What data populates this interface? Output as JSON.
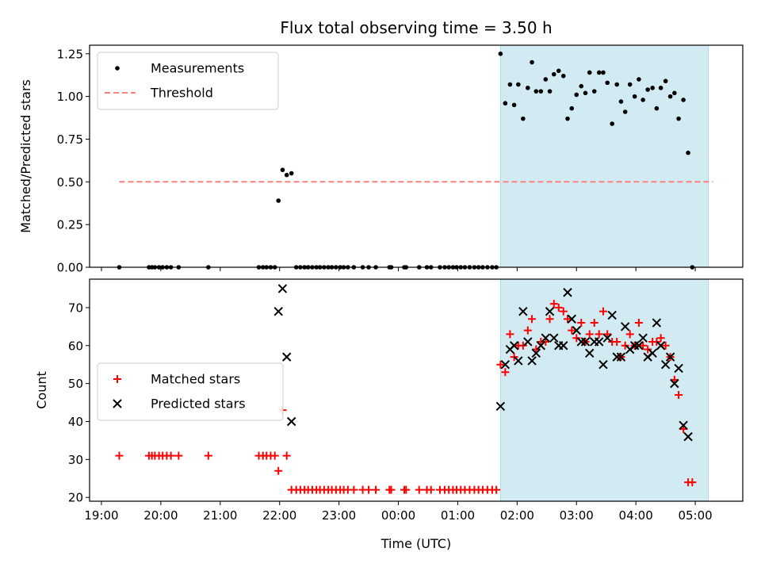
{
  "title": "Flux total observing time = 3.50 h",
  "xlabel": "Time (UTC)",
  "colors": {
    "highlight": "#add8e6",
    "threshold": "#ff7f7f",
    "measurement": "#000000",
    "matched": "#ff0000",
    "predicted": "#000000"
  },
  "chart_data": [
    {
      "type": "scatter",
      "ylabel": "Matched/Predicted stars",
      "xlim": [
        -0.2,
        10.8
      ],
      "ylim": [
        0,
        1.3
      ],
      "yticks": [
        "0.00",
        "0.25",
        "0.50",
        "0.75",
        "1.00",
        "1.25"
      ],
      "legend_position": "top-left",
      "threshold": {
        "name": "Threshold",
        "value": 0.5,
        "x_start": 0.3,
        "x_end": 10.3
      },
      "highlight_span": [
        6.72,
        10.22
      ],
      "series": [
        {
          "name": "Measurements",
          "points": [
            [
              0.3,
              0
            ],
            [
              0.8,
              0
            ],
            [
              0.85,
              0
            ],
            [
              0.9,
              0
            ],
            [
              0.97,
              0
            ],
            [
              1.03,
              0
            ],
            [
              1.1,
              0
            ],
            [
              1.17,
              0
            ],
            [
              1.3,
              0
            ],
            [
              1.8,
              0
            ],
            [
              2.65,
              0
            ],
            [
              2.72,
              0
            ],
            [
              2.78,
              0
            ],
            [
              2.85,
              0
            ],
            [
              2.92,
              0
            ],
            [
              2.98,
              0.39
            ],
            [
              3.05,
              0.57
            ],
            [
              3.12,
              0.54
            ],
            [
              3.2,
              0.55
            ],
            [
              3.28,
              0
            ],
            [
              3.35,
              0
            ],
            [
              3.42,
              0
            ],
            [
              3.48,
              0
            ],
            [
              3.55,
              0
            ],
            [
              3.62,
              0
            ],
            [
              3.68,
              0
            ],
            [
              3.75,
              0
            ],
            [
              3.82,
              0
            ],
            [
              3.88,
              0
            ],
            [
              3.95,
              0
            ],
            [
              4.02,
              0
            ],
            [
              4.08,
              0
            ],
            [
              4.15,
              0
            ],
            [
              4.25,
              0
            ],
            [
              4.4,
              0
            ],
            [
              4.5,
              0
            ],
            [
              4.62,
              0
            ],
            [
              4.85,
              0
            ],
            [
              4.88,
              0
            ],
            [
              5.1,
              0
            ],
            [
              5.13,
              0
            ],
            [
              5.35,
              0
            ],
            [
              5.48,
              0
            ],
            [
              5.55,
              0
            ],
            [
              5.7,
              0
            ],
            [
              5.78,
              0
            ],
            [
              5.85,
              0
            ],
            [
              5.92,
              0
            ],
            [
              5.98,
              0
            ],
            [
              6.05,
              0
            ],
            [
              6.12,
              0
            ],
            [
              6.2,
              0
            ],
            [
              6.28,
              0
            ],
            [
              6.35,
              0
            ],
            [
              6.42,
              0
            ],
            [
              6.5,
              0
            ],
            [
              6.58,
              0
            ],
            [
              6.65,
              0
            ],
            [
              6.72,
              1.25
            ],
            [
              6.8,
              0.96
            ],
            [
              6.88,
              1.07
            ],
            [
              6.95,
              0.95
            ],
            [
              7.02,
              1.07
            ],
            [
              7.1,
              0.87
            ],
            [
              7.18,
              1.05
            ],
            [
              7.25,
              1.2
            ],
            [
              7.32,
              1.03
            ],
            [
              7.4,
              1.03
            ],
            [
              7.48,
              1.1
            ],
            [
              7.55,
              1.03
            ],
            [
              7.62,
              1.13
            ],
            [
              7.7,
              1.15
            ],
            [
              7.78,
              1.12
            ],
            [
              7.85,
              0.87
            ],
            [
              7.92,
              0.93
            ],
            [
              8.0,
              1.01
            ],
            [
              8.08,
              1.06
            ],
            [
              8.15,
              1.02
            ],
            [
              8.22,
              1.14
            ],
            [
              8.3,
              1.03
            ],
            [
              8.38,
              1.14
            ],
            [
              8.45,
              1.14
            ],
            [
              8.52,
              1.08
            ],
            [
              8.6,
              0.84
            ],
            [
              8.68,
              1.07
            ],
            [
              8.75,
              0.97
            ],
            [
              8.82,
              0.91
            ],
            [
              8.9,
              1.07
            ],
            [
              8.98,
              1.0
            ],
            [
              9.05,
              1.1
            ],
            [
              9.12,
              0.98
            ],
            [
              9.2,
              1.04
            ],
            [
              9.28,
              1.05
            ],
            [
              9.35,
              0.93
            ],
            [
              9.42,
              1.05
            ],
            [
              9.5,
              1.09
            ],
            [
              9.58,
              1.0
            ],
            [
              9.65,
              1.02
            ],
            [
              9.72,
              0.87
            ],
            [
              9.8,
              0.98
            ],
            [
              9.88,
              0.67
            ],
            [
              9.95,
              0
            ]
          ]
        }
      ]
    },
    {
      "type": "scatter",
      "ylabel": "Count",
      "xlabel": "Time (UTC)",
      "xlim": [
        -0.2,
        10.8
      ],
      "ylim": [
        19,
        77.5
      ],
      "yticks": [
        "20",
        "30",
        "40",
        "50",
        "60",
        "70"
      ],
      "xticks": [
        "19:00",
        "20:00",
        "21:00",
        "22:00",
        "23:00",
        "00:00",
        "01:00",
        "02:00",
        "03:00",
        "04:00",
        "05:00"
      ],
      "legend_position": "center-left",
      "highlight_span": [
        6.72,
        10.22
      ],
      "series": [
        {
          "name": "Matched stars",
          "marker": "plus",
          "points": [
            [
              0.3,
              31
            ],
            [
              0.8,
              31
            ],
            [
              0.85,
              31
            ],
            [
              0.9,
              31
            ],
            [
              0.97,
              31
            ],
            [
              1.03,
              31
            ],
            [
              1.1,
              31
            ],
            [
              1.17,
              31
            ],
            [
              1.3,
              31
            ],
            [
              1.8,
              31
            ],
            [
              2.65,
              31
            ],
            [
              2.72,
              31
            ],
            [
              2.78,
              31
            ],
            [
              2.85,
              31
            ],
            [
              2.92,
              31
            ],
            [
              2.98,
              27
            ],
            [
              3.05,
              43
            ],
            [
              3.12,
              31
            ],
            [
              3.2,
              22
            ],
            [
              3.28,
              22
            ],
            [
              3.35,
              22
            ],
            [
              3.42,
              22
            ],
            [
              3.48,
              22
            ],
            [
              3.55,
              22
            ],
            [
              3.62,
              22
            ],
            [
              3.68,
              22
            ],
            [
              3.75,
              22
            ],
            [
              3.82,
              22
            ],
            [
              3.88,
              22
            ],
            [
              3.95,
              22
            ],
            [
              4.02,
              22
            ],
            [
              4.08,
              22
            ],
            [
              4.15,
              22
            ],
            [
              4.25,
              22
            ],
            [
              4.4,
              22
            ],
            [
              4.5,
              22
            ],
            [
              4.62,
              22
            ],
            [
              4.85,
              22
            ],
            [
              4.88,
              22
            ],
            [
              5.1,
              22
            ],
            [
              5.13,
              22
            ],
            [
              5.35,
              22
            ],
            [
              5.48,
              22
            ],
            [
              5.55,
              22
            ],
            [
              5.7,
              22
            ],
            [
              5.78,
              22
            ],
            [
              5.85,
              22
            ],
            [
              5.92,
              22
            ],
            [
              5.98,
              22
            ],
            [
              6.05,
              22
            ],
            [
              6.12,
              22
            ],
            [
              6.2,
              22
            ],
            [
              6.28,
              22
            ],
            [
              6.35,
              22
            ],
            [
              6.42,
              22
            ],
            [
              6.5,
              22
            ],
            [
              6.58,
              22
            ],
            [
              6.65,
              22
            ],
            [
              6.72,
              55
            ],
            [
              6.8,
              53
            ],
            [
              6.88,
              63
            ],
            [
              6.95,
              57
            ],
            [
              7.02,
              60
            ],
            [
              7.1,
              60
            ],
            [
              7.18,
              64
            ],
            [
              7.25,
              67
            ],
            [
              7.32,
              59
            ],
            [
              7.4,
              61
            ],
            [
              7.48,
              61
            ],
            [
              7.55,
              67
            ],
            [
              7.62,
              71
            ],
            [
              7.7,
              70
            ],
            [
              7.78,
              69
            ],
            [
              7.85,
              67
            ],
            [
              7.92,
              64
            ],
            [
              8.0,
              62
            ],
            [
              8.08,
              66
            ],
            [
              8.15,
              61
            ],
            [
              8.22,
              63
            ],
            [
              8.3,
              66
            ],
            [
              8.38,
              63
            ],
            [
              8.45,
              69
            ],
            [
              8.52,
              63
            ],
            [
              8.6,
              61
            ],
            [
              8.68,
              61
            ],
            [
              8.75,
              57
            ],
            [
              8.82,
              60
            ],
            [
              8.9,
              63
            ],
            [
              8.98,
              60
            ],
            [
              9.05,
              66
            ],
            [
              9.12,
              60
            ],
            [
              9.2,
              59
            ],
            [
              9.28,
              61
            ],
            [
              9.35,
              61
            ],
            [
              9.42,
              62
            ],
            [
              9.5,
              60
            ],
            [
              9.58,
              57
            ],
            [
              9.65,
              51
            ],
            [
              9.72,
              47
            ],
            [
              9.8,
              38
            ],
            [
              9.88,
              24
            ],
            [
              9.95,
              24
            ]
          ]
        },
        {
          "name": "Predicted stars",
          "marker": "x",
          "points": [
            [
              2.98,
              69
            ],
            [
              3.05,
              75
            ],
            [
              3.12,
              57
            ],
            [
              3.2,
              40
            ],
            [
              6.72,
              44
            ],
            [
              6.8,
              55
            ],
            [
              6.88,
              59
            ],
            [
              6.95,
              60
            ],
            [
              7.02,
              56
            ],
            [
              7.1,
              69
            ],
            [
              7.18,
              61
            ],
            [
              7.25,
              56
            ],
            [
              7.32,
              58
            ],
            [
              7.4,
              60
            ],
            [
              7.48,
              62
            ],
            [
              7.55,
              69
            ],
            [
              7.62,
              62
            ],
            [
              7.7,
              60
            ],
            [
              7.78,
              60
            ],
            [
              7.85,
              74
            ],
            [
              7.92,
              67
            ],
            [
              8.0,
              64
            ],
            [
              8.08,
              61
            ],
            [
              8.15,
              61
            ],
            [
              8.22,
              58
            ],
            [
              8.3,
              61
            ],
            [
              8.38,
              61
            ],
            [
              8.45,
              55
            ],
            [
              8.52,
              62
            ],
            [
              8.6,
              68
            ],
            [
              8.68,
              57
            ],
            [
              8.75,
              57
            ],
            [
              8.82,
              65
            ],
            [
              8.9,
              59
            ],
            [
              8.98,
              60
            ],
            [
              9.05,
              60
            ],
            [
              9.12,
              62
            ],
            [
              9.2,
              57
            ],
            [
              9.28,
              58
            ],
            [
              9.35,
              66
            ],
            [
              9.42,
              60
            ],
            [
              9.5,
              55
            ],
            [
              9.58,
              57
            ],
            [
              9.65,
              50
            ],
            [
              9.72,
              54
            ],
            [
              9.8,
              39
            ],
            [
              9.88,
              36
            ]
          ]
        }
      ]
    }
  ]
}
